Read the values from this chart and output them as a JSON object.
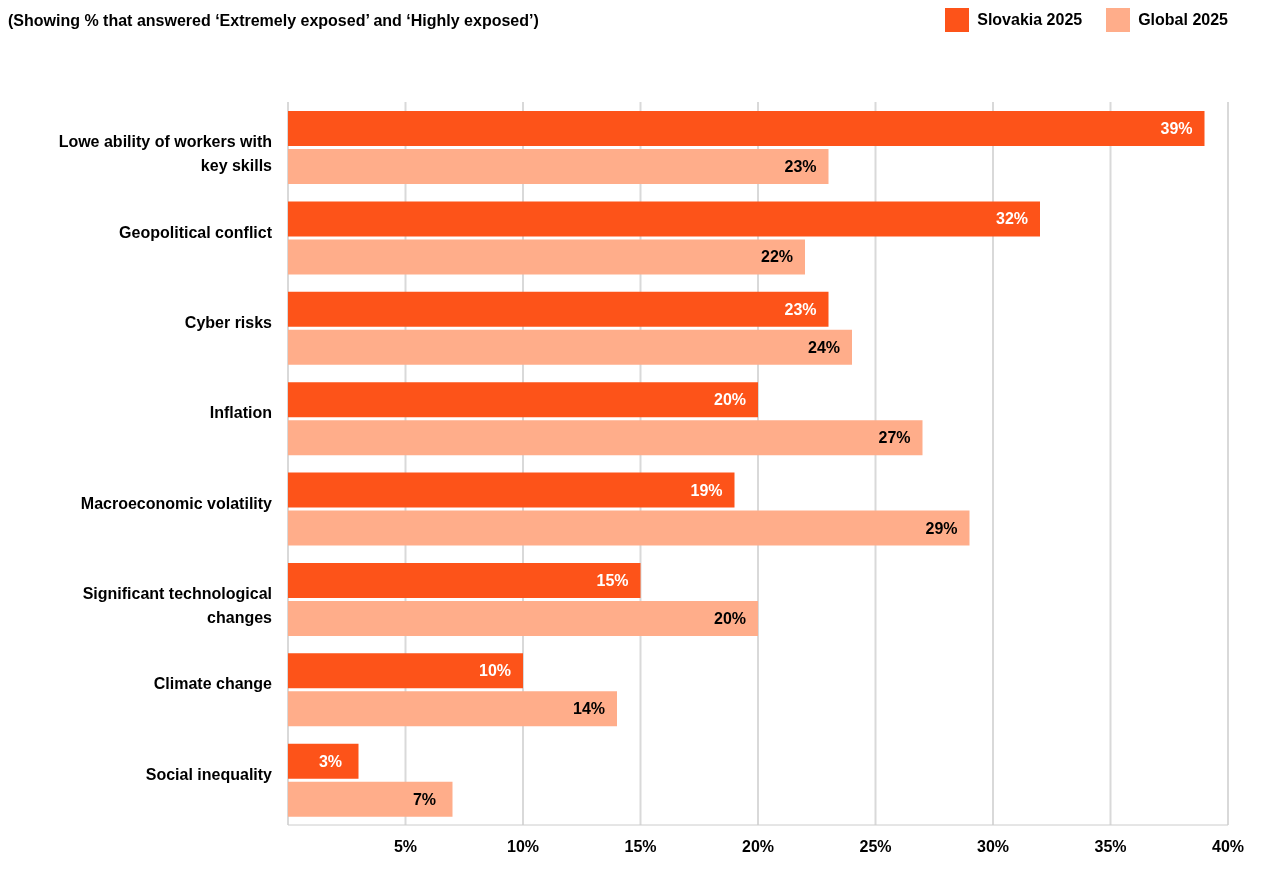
{
  "chart_data": {
    "type": "bar",
    "orientation": "horizontal",
    "title": "(Showing % that answered ‘Extremely exposed’ and ‘Highly exposed’)",
    "categories": [
      "Lowe ability of workers with key skills",
      "Geopolitical conflict",
      "Cyber risks",
      "Inflation",
      "Macroeconomic volatility",
      "Significant technological changes",
      "Climate change",
      "Social inequality"
    ],
    "series": [
      {
        "name": "Slovakia 2025",
        "color": "#fd5319",
        "values": [
          39,
          32,
          23,
          20,
          19,
          15,
          10,
          3
        ],
        "value_labels": [
          "39%",
          "32%",
          "23%",
          "20%",
          "19%",
          "15%",
          "10%",
          "3%"
        ]
      },
      {
        "name": "Global 2025",
        "color": "#ffad8a",
        "values": [
          23,
          22,
          24,
          27,
          29,
          20,
          14,
          7
        ],
        "value_labels": [
          "23%",
          "22%",
          "24%",
          "27%",
          "29%",
          "20%",
          "14%",
          "7%"
        ]
      }
    ],
    "xlim": [
      0,
      40
    ],
    "xticks": [
      {
        "value": 5,
        "label": "5%"
      },
      {
        "value": 10,
        "label": "10%"
      },
      {
        "value": 15,
        "label": "15%"
      },
      {
        "value": 20,
        "label": "20%"
      },
      {
        "value": 25,
        "label": "25%"
      },
      {
        "value": 30,
        "label": "30%"
      },
      {
        "value": 35,
        "label": "35%"
      },
      {
        "value": 40,
        "label": "40%"
      }
    ],
    "grid": "x",
    "legend": "top right"
  }
}
